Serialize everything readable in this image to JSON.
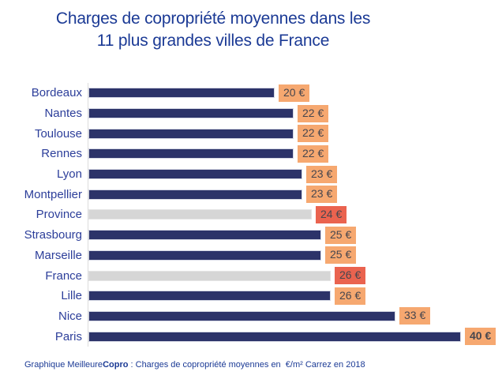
{
  "header": {
    "title_line1": "Charges de copropriété moyennes dans les",
    "title_line2": "11 plus grandes villes de France"
  },
  "chart_data": {
    "type": "bar",
    "orientation": "horizontal",
    "title": "Charges de copropriété moyennes dans les 11 plus grandes villes de France",
    "categories": [
      "Bordeaux",
      "Nantes",
      "Toulouse",
      "Rennes",
      "Lyon",
      "Montpellier",
      "Province",
      "Strasbourg",
      "Marseille",
      "France",
      "Lille",
      "Nice",
      "Paris"
    ],
    "values": [
      20,
      22,
      22,
      22,
      23,
      23,
      24,
      25,
      25,
      26,
      26,
      33,
      40
    ],
    "data_labels": [
      "20 €",
      "22 €",
      "22 €",
      "22 €",
      "23 €",
      "23 €",
      "24 €",
      "25 €",
      "25 €",
      "26 €",
      "26 €",
      "33 €",
      "40 €"
    ],
    "unit": "€/m² Carrez",
    "xlim": [
      0,
      40
    ],
    "muted_categories": [
      "Province",
      "France"
    ],
    "bold_label_categories": [
      "Paris"
    ],
    "grid": false,
    "legend": false,
    "xlabel": "",
    "ylabel": ""
  },
  "footer": {
    "prefix": "Graphique Meilleure",
    "brand_bold": "Copro",
    "suffix": " : Charges de copropriété moyennes en  €/m² Carrez en 2018"
  },
  "colors": {
    "bar": "#2c3369",
    "bar_muted": "#d6d6d6",
    "badge": "#f6a870",
    "badge_highlight": "#ea634f",
    "badge_text": "#46464e",
    "title_text": "#1b3a95",
    "label_text": "#2c3e9a",
    "axis_line": "#dcdcdc"
  }
}
